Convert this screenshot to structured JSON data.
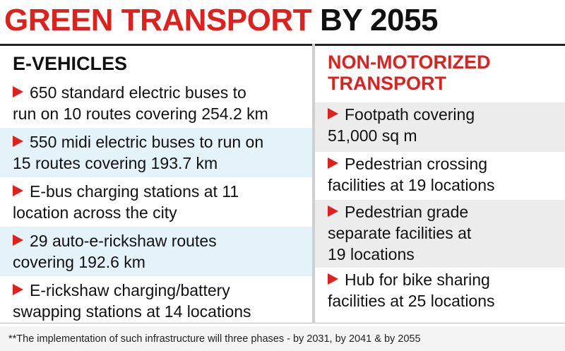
{
  "title": {
    "red": "GREEN TRANSPORT",
    "black": "BY 2055"
  },
  "left": {
    "heading": "E-VEHICLES",
    "items": [
      {
        "line1": "650 standard electric buses to",
        "line2": "run on 10 routes covering 254.2 km"
      },
      {
        "line1": "550 midi electric buses to run on",
        "line2": "15 routes covering 193.7 km"
      },
      {
        "line1": "E-bus charging stations at 11",
        "line2": "location across the city"
      },
      {
        "line1": "29 auto-e-rickshaw routes",
        "line2": "covering 192.6 km"
      },
      {
        "line1": "E-rickshaw charging/battery",
        "line2": "swapping stations at 14 locations"
      }
    ]
  },
  "right": {
    "heading_line1": "NON-MOTORIZED",
    "heading_line2": "TRANSPORT",
    "items": [
      {
        "line1": "Footpath covering",
        "line2": "51,000 sq m"
      },
      {
        "line1": "Pedestrian crossing",
        "line2": "facilities at 19 locations"
      },
      {
        "line1": "Pedestrian grade",
        "line2": "separate facilities at",
        "line3": "19 locations"
      },
      {
        "line1": "Hub for bike sharing",
        "line2": "facilities at 25 locations"
      }
    ]
  },
  "footnote": "**The implementation of such infrastructure will three phases - by 2031, by 2041 & by 2055",
  "colors": {
    "accent_red": "#e0201c",
    "shade_blue": "#e4f2f9",
    "shade_grey": "#ececec"
  }
}
